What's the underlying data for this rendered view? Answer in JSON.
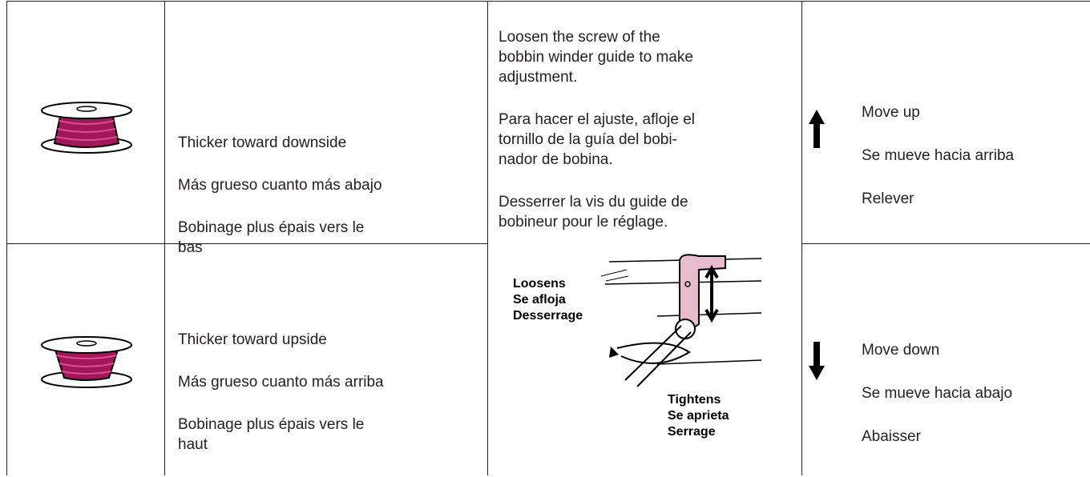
{
  "table": {
    "rows": [
      {
        "description": [
          "Thicker toward downside",
          "Más grueso cuanto más abajo",
          "Bobinage plus épais vers le\nbas"
        ],
        "action": [
          "Move up",
          "Se mueve hacia arriba",
          "Relever"
        ]
      },
      {
        "description": [
          "Thicker toward upside",
          "Más grueso cuanto más arriba",
          "Bobinage plus épais vers le\nhaut"
        ],
        "action": [
          "Move down",
          "Se mueve hacia abajo",
          "Abaisser"
        ]
      }
    ],
    "instruction": [
      "Loosen the screw of the\nbobbin winder guide to make\nadjustment.",
      "Para hacer el ajuste, afloje el\ntornillo de la guía del bobi-\nnador de bobina.",
      "Desserrer la vis du guide de\nbobineur pour le réglage."
    ],
    "loosens": "Loosens\nSe afloja\nDesserrage",
    "tightens": "Tightens\nSe aprieta\nSerrage"
  }
}
